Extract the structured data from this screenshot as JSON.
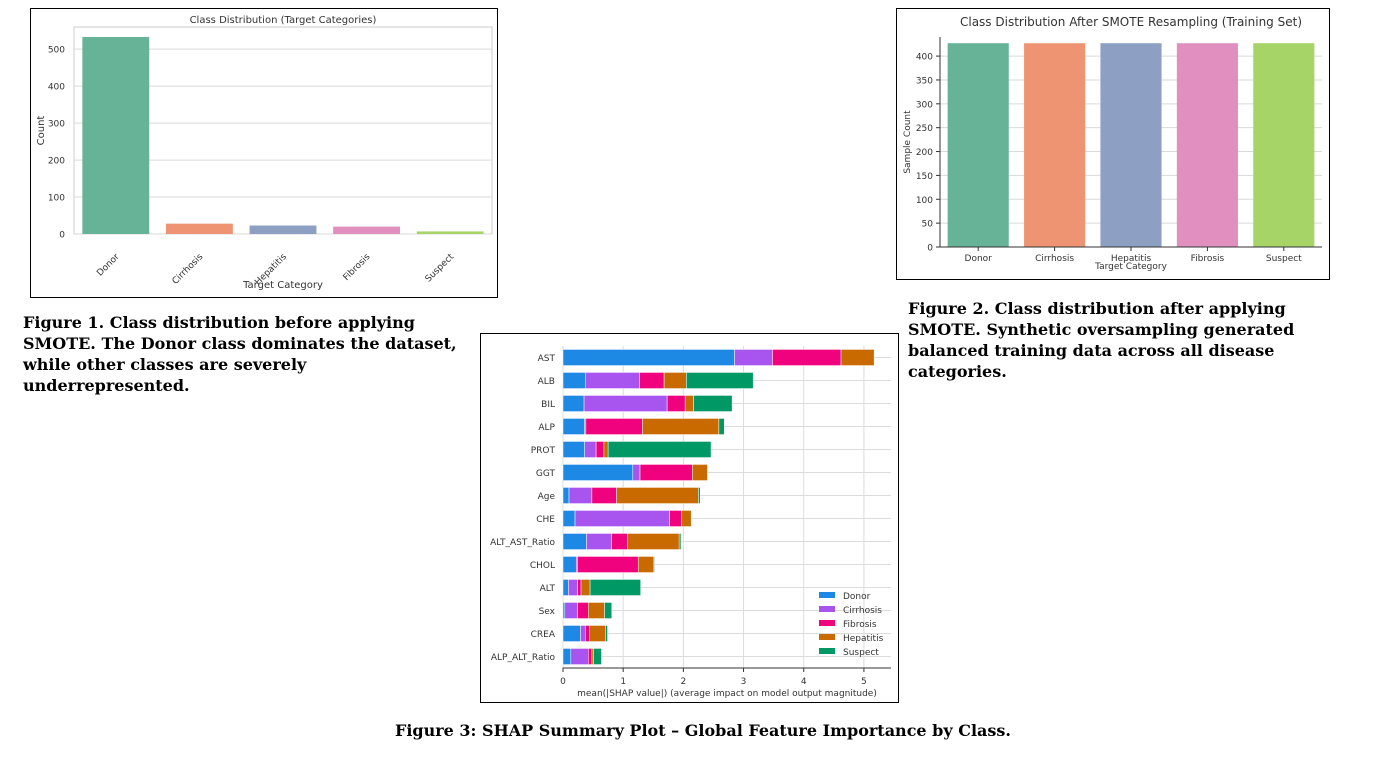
{
  "figure1": {
    "caption": "Figure 1. Class distribution before applying SMOTE. The Donor class dominates the dataset, while other classes are severely underrepresented.",
    "chart_data": {
      "type": "bar",
      "title": "Class Distribution (Target Categories)",
      "xlabel": "Target Category",
      "ylabel": "Count",
      "categories": [
        "Donor",
        "Cirrhosis",
        "Hepatitis",
        "Fibrosis",
        "Suspect"
      ],
      "values": [
        533,
        28,
        23,
        20,
        7
      ],
      "colors": [
        "#66b398",
        "#ef9472",
        "#8da0c3",
        "#e08fbe",
        "#a6d467"
      ],
      "ylim": [
        0,
        560
      ],
      "yticks": [
        0,
        100,
        200,
        300,
        400,
        500
      ],
      "grid": true
    }
  },
  "figure2": {
    "caption": "Figure 2. Class distribution after applying SMOTE. Synthetic oversampling generated balanced training data across all disease categories.",
    "chart_data": {
      "type": "bar",
      "title": "Class Distribution After SMOTE Resampling (Training Set)",
      "xlabel": "Target Category",
      "ylabel": "Sample Count",
      "categories": [
        "Donor",
        "Cirrhosis",
        "Hepatitis",
        "Fibrosis",
        "Suspect"
      ],
      "values": [
        427,
        427,
        427,
        427,
        427
      ],
      "colors": [
        "#66b398",
        "#ef9472",
        "#8da0c3",
        "#e08fbe",
        "#a6d467"
      ],
      "ylim": [
        0,
        440
      ],
      "yticks": [
        0,
        50,
        100,
        150,
        200,
        250,
        300,
        350,
        400
      ],
      "grid": true
    }
  },
  "figure3": {
    "caption": "Figure 3: SHAP Summary Plot – Global Feature Importance by Class.",
    "chart_data": {
      "type": "bar",
      "orientation": "horizontal-stacked",
      "xlabel": "mean(|SHAP value|) (average impact on model output magnitude)",
      "xlim": [
        0,
        5.45
      ],
      "xticks": [
        0,
        1,
        2,
        3,
        4,
        5
      ],
      "grid": true,
      "legend_position": "bottom-right",
      "categories": [
        "AST",
        "ALB",
        "BIL",
        "ALP",
        "PROT",
        "GGT",
        "Age",
        "CHE",
        "ALT_AST_Ratio",
        "CHOL",
        "ALT",
        "Sex",
        "CREA",
        "ALP_ALT_Ratio"
      ],
      "series": [
        {
          "name": "Donor",
          "color": "#1e88e5",
          "values": [
            2.85,
            0.37,
            0.35,
            0.36,
            0.36,
            1.16,
            0.1,
            0.2,
            0.39,
            0.22,
            0.09,
            0.03,
            0.29,
            0.13
          ]
        },
        {
          "name": "Cirrhosis",
          "color": "#a855f0",
          "values": [
            0.63,
            0.9,
            1.38,
            0.02,
            0.19,
            0.12,
            0.38,
            1.57,
            0.42,
            0.02,
            0.15,
            0.21,
            0.08,
            0.29
          ]
        },
        {
          "name": "Fibrosis",
          "color": "#f0027f",
          "values": [
            1.14,
            0.41,
            0.3,
            0.94,
            0.13,
            0.87,
            0.41,
            0.2,
            0.26,
            1.01,
            0.06,
            0.18,
            0.07,
            0.06
          ]
        },
        {
          "name": "Hepatitis",
          "color": "#c96a00",
          "values": [
            0.55,
            0.37,
            0.14,
            1.27,
            0.07,
            0.25,
            1.36,
            0.16,
            0.86,
            0.25,
            0.15,
            0.27,
            0.27,
            0.03
          ]
        },
        {
          "name": "Suspect",
          "color": "#009966",
          "values": [
            0.0,
            1.11,
            0.64,
            0.09,
            1.71,
            0.0,
            0.03,
            0.0,
            0.03,
            0.02,
            0.84,
            0.12,
            0.03,
            0.13
          ]
        }
      ]
    }
  }
}
